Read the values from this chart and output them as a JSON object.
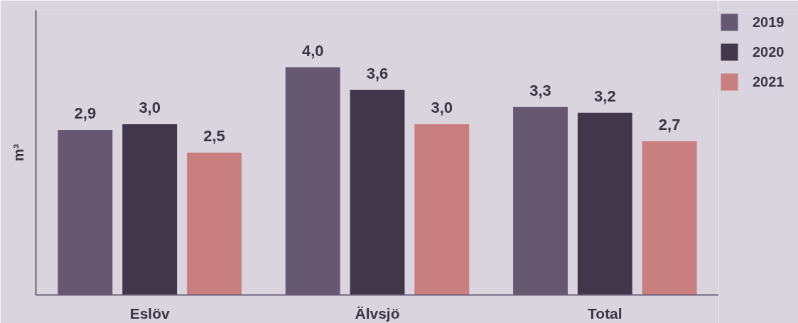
{
  "chart_data": {
    "type": "bar",
    "ylabel": "m³",
    "categories": [
      "Eslöv",
      "Älvsjö",
      "Total"
    ],
    "series": [
      {
        "name": "2019",
        "color": "#675872",
        "values": [
          2.9,
          4.0,
          3.3
        ],
        "value_labels": [
          "2,9",
          "4,0",
          "3,3"
        ]
      },
      {
        "name": "2020",
        "color": "#40374a",
        "values": [
          3.0,
          3.6,
          3.2
        ],
        "value_labels": [
          "3,0",
          "3,6",
          "3,2"
        ]
      },
      {
        "name": "2021",
        "color": "#c97e7f",
        "values": [
          2.5,
          3.0,
          2.7
        ],
        "value_labels": [
          "2,5",
          "3,0",
          "2,7"
        ]
      }
    ],
    "ylim": [
      0,
      5
    ],
    "tick_labels": "x",
    "legend": "top right"
  }
}
